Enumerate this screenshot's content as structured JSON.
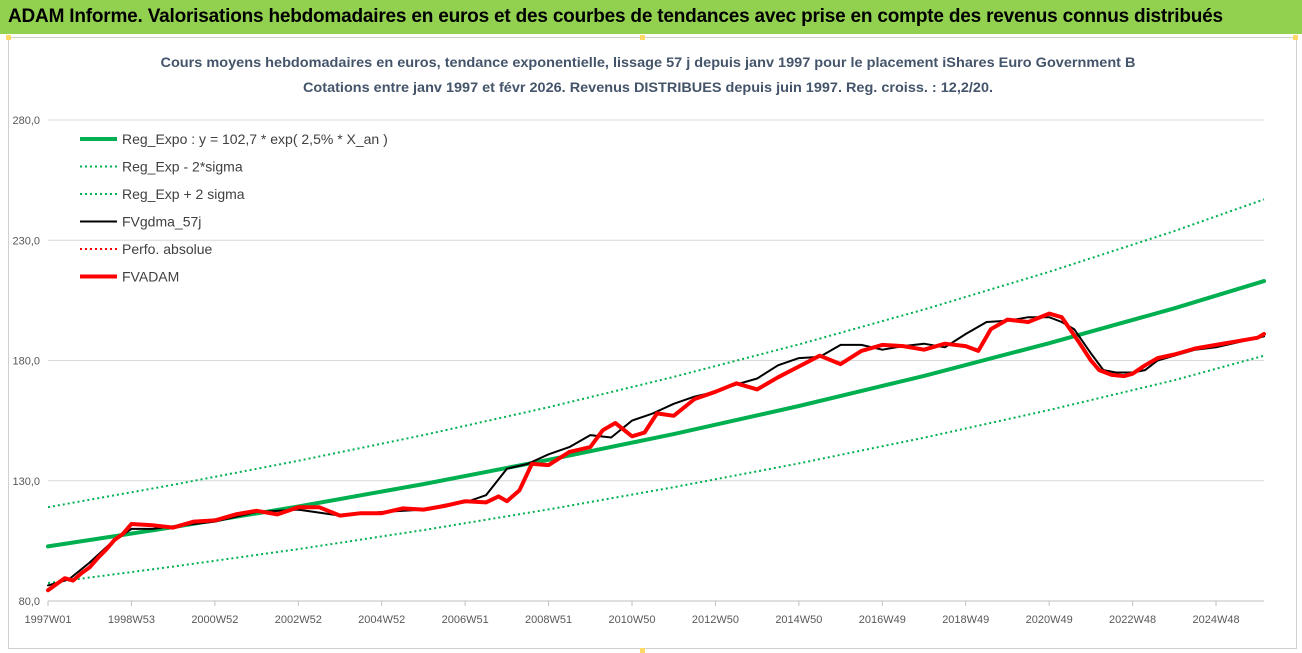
{
  "banner": {
    "title": "ADAM Informe. Valorisations hebdomadaires en euros et des courbes de tendances avec prise en compte des revenus connus distribués",
    "color": "#92d050"
  },
  "chart_data": {
    "type": "line",
    "title": "Cours moyens hebdomadaires en euros, tendance exponentielle, lissage 57 j depuis janv 1997 pour le placement iShares Euro Government B",
    "subtitle": "Cotations entre janv 1997 et févr 2026. Revenus DISTRIBUES depuis juin 1997. Reg. croiss. : 12,2/20.",
    "xlabel": "",
    "ylabel": "",
    "ylim": [
      80,
      280
    ],
    "xlim": [
      1997.0,
      2026.15
    ],
    "y_ticks": [
      "80,0",
      "130,0",
      "180,0",
      "230,0",
      "280,0"
    ],
    "y_tick_values": [
      80,
      130,
      180,
      230,
      280
    ],
    "x_ticks": [
      "1997W01",
      "1998W53",
      "2000W52",
      "2002W52",
      "2004W52",
      "2006W51",
      "2008W51",
      "2010W50",
      "2012W50",
      "2014W50",
      "2016W49",
      "2018W49",
      "2020W49",
      "2022W48",
      "2024W48"
    ],
    "x_tick_values": [
      1997.0,
      1999.0,
      2001.0,
      2003.0,
      2005.0,
      2007.0,
      2009.0,
      2011.0,
      2013.0,
      2015.0,
      2017.0,
      2019.0,
      2021.0,
      2023.0,
      2025.0
    ],
    "grid": "horizontal",
    "legend_position": "top-left",
    "series": [
      {
        "name": "Reg_Expo : y = 102,7 * exp( 2,5% *  X_an )",
        "style": "solid-thick",
        "color": "#00b050",
        "x": [
          1997.0,
          2000.0,
          2003.0,
          2006.0,
          2009.0,
          2012.0,
          2015.0,
          2018.0,
          2021.0,
          2024.0,
          2026.15
        ],
        "values": [
          102.7,
          110.7,
          119.3,
          128.6,
          138.7,
          149.4,
          161.1,
          173.6,
          187.2,
          201.7,
          213.0
        ]
      },
      {
        "name": "Reg_Exp - 2*sigma",
        "style": "dotted",
        "color": "#00b050",
        "x": [
          1997.0,
          2000.0,
          2003.0,
          2006.0,
          2009.0,
          2012.0,
          2015.0,
          2018.0,
          2021.0,
          2024.0,
          2026.15
        ],
        "values": [
          87.5,
          94.3,
          101.6,
          109.5,
          118.1,
          127.3,
          137.2,
          147.9,
          159.4,
          171.8,
          182.0
        ]
      },
      {
        "name": "Reg_Exp + 2 sigma",
        "style": "dotted",
        "color": "#00b050",
        "x": [
          1997.0,
          2000.0,
          2003.0,
          2006.0,
          2009.0,
          2012.0,
          2015.0,
          2018.0,
          2021.0,
          2024.0,
          2026.15
        ],
        "values": [
          119.0,
          128.3,
          138.3,
          149.0,
          160.6,
          173.2,
          186.7,
          201.2,
          216.9,
          233.8,
          247.0
        ]
      },
      {
        "name": "FVgdma_57j",
        "style": "solid",
        "color": "#000000",
        "x": [
          1997.0,
          1997.5,
          1998.0,
          1998.5,
          1999.0,
          1999.5,
          2000.0,
          2000.5,
          2001.0,
          2002.0,
          2003.0,
          2004.0,
          2005.0,
          2006.0,
          2006.5,
          2007.0,
          2007.5,
          2008.0,
          2008.5,
          2009.0,
          2009.5,
          2010.0,
          2010.5,
          2011.0,
          2011.5,
          2012.0,
          2012.5,
          2013.0,
          2013.5,
          2014.0,
          2014.5,
          2015.0,
          2015.5,
          2016.0,
          2016.5,
          2017.0,
          2017.5,
          2018.0,
          2018.5,
          2019.0,
          2019.5,
          2020.0,
          2020.5,
          2021.0,
          2021.3,
          2021.6,
          2022.0,
          2022.3,
          2022.6,
          2023.0,
          2023.3,
          2023.6,
          2024.0,
          2024.5,
          2025.0,
          2025.5,
          2026.15
        ],
        "values": [
          86.5,
          89.0,
          96.0,
          104.0,
          110.0,
          110.0,
          111.0,
          112.0,
          113.0,
          117.0,
          118.0,
          115.5,
          117.0,
          118.0,
          120.0,
          121.0,
          124.0,
          135.0,
          137.0,
          141.0,
          144.0,
          149.0,
          148.0,
          155.0,
          158.0,
          162.0,
          165.0,
          167.0,
          170.0,
          172.5,
          178.0,
          181.0,
          181.5,
          186.5,
          186.5,
          184.5,
          186.0,
          187.0,
          185.5,
          191.0,
          196.0,
          196.5,
          198.0,
          198.0,
          196.0,
          193.0,
          183.0,
          176.0,
          175.0,
          175.0,
          176.0,
          180.0,
          182.0,
          184.5,
          185.5,
          187.5,
          190.0
        ]
      },
      {
        "name": "Perfo. absolue",
        "style": "dotted",
        "color": "#ff0000",
        "x": [],
        "values": []
      },
      {
        "name": "FVADAM",
        "style": "solid-thick",
        "color": "#ff0000",
        "x": [
          1997.0,
          1997.2,
          1997.4,
          1997.6,
          1997.8,
          1998.0,
          1998.2,
          1998.4,
          1998.6,
          1998.8,
          1999.0,
          1999.5,
          2000.0,
          2000.5,
          2001.0,
          2001.5,
          2002.0,
          2002.5,
          2003.0,
          2003.5,
          2004.0,
          2004.5,
          2005.0,
          2005.5,
          2006.0,
          2006.5,
          2007.0,
          2007.5,
          2007.8,
          2008.0,
          2008.3,
          2008.6,
          2009.0,
          2009.5,
          2010.0,
          2010.3,
          2010.6,
          2011.0,
          2011.3,
          2011.6,
          2012.0,
          2012.5,
          2013.0,
          2013.5,
          2014.0,
          2014.5,
          2015.0,
          2015.5,
          2016.0,
          2016.5,
          2017.0,
          2017.5,
          2018.0,
          2018.5,
          2019.0,
          2019.3,
          2019.6,
          2020.0,
          2020.5,
          2021.0,
          2021.3,
          2021.5,
          2021.7,
          2022.0,
          2022.2,
          2022.5,
          2022.8,
          2023.0,
          2023.3,
          2023.6,
          2024.0,
          2024.5,
          2025.0,
          2025.5,
          2026.0,
          2026.15
        ],
        "values": [
          84.5,
          87.0,
          89.5,
          88.5,
          91.5,
          94.0,
          98.0,
          101.5,
          105.5,
          108.0,
          112.0,
          111.5,
          110.5,
          113.0,
          113.5,
          116.0,
          117.5,
          116.0,
          119.0,
          119.0,
          115.5,
          116.5,
          116.5,
          118.5,
          118.0,
          119.5,
          121.5,
          121.0,
          123.5,
          121.5,
          126.0,
          137.0,
          136.5,
          142.0,
          144.0,
          151.0,
          154.0,
          148.5,
          150.0,
          158.0,
          157.0,
          164.0,
          167.0,
          170.5,
          168.0,
          173.0,
          177.5,
          182.0,
          178.5,
          184.0,
          186.5,
          186.0,
          184.5,
          187.0,
          186.0,
          184.0,
          193.0,
          197.0,
          196.0,
          199.5,
          198.0,
          193.0,
          188.0,
          180.0,
          176.0,
          174.0,
          173.5,
          174.5,
          178.0,
          181.0,
          182.5,
          185.0,
          186.5,
          188.0,
          189.5,
          191.0
        ]
      }
    ]
  }
}
